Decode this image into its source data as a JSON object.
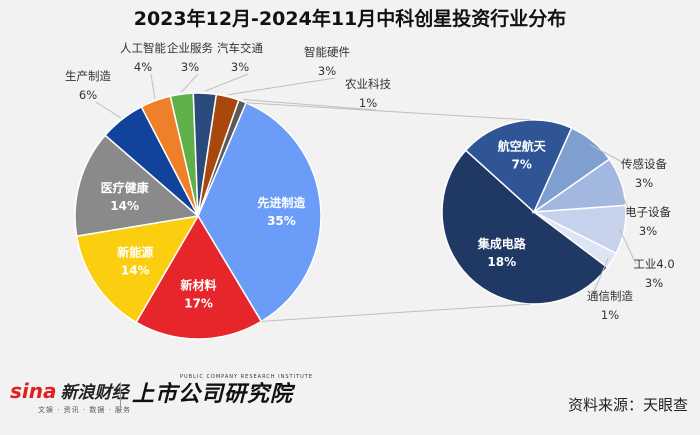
{
  "title": "2023年12月-2024年11月中科创星投资行业分布",
  "chart_data": [
    {
      "type": "pie",
      "slices": [
        {
          "label": "先进制造",
          "value": 35,
          "pct": "35%",
          "color": "#6b9df8"
        },
        {
          "label": "新材料",
          "value": 17,
          "pct": "17%",
          "color": "#e6262b"
        },
        {
          "label": "新能源",
          "value": 14,
          "pct": "14%",
          "color": "#fcce10"
        },
        {
          "label": "医疗健康",
          "value": 14,
          "pct": "14%",
          "color": "#8a8a8a"
        },
        {
          "label": "生产制造",
          "value": 6,
          "pct": "6%",
          "color": "#11429c"
        },
        {
          "label": "人工智能",
          "value": 4,
          "pct": "4%",
          "color": "#f07f2a"
        },
        {
          "label": "企业服务",
          "value": 3,
          "pct": "3%",
          "color": "#5fb048"
        },
        {
          "label": "汽车交通",
          "value": 3,
          "pct": "3%",
          "color": "#2b4a7c"
        },
        {
          "label": "智能硬件",
          "value": 3,
          "pct": "3%",
          "color": "#a8480e"
        },
        {
          "label": "农业科技",
          "value": 1,
          "pct": "1%",
          "color": "#5a5a5a"
        }
      ]
    },
    {
      "type": "pie",
      "slices": [
        {
          "label": "集成电路",
          "value": 18,
          "pct": "18%",
          "color": "#1f3864"
        },
        {
          "label": "航空航天",
          "value": 7,
          "pct": "7%",
          "color": "#2f5597"
        },
        {
          "label": "传感设备",
          "value": 3,
          "pct": "3%",
          "color": "#7f9fd1"
        },
        {
          "label": "电子设备",
          "value": 3,
          "pct": "3%",
          "color": "#a3b8e0"
        },
        {
          "label": "工业4.0",
          "value": 3,
          "pct": "3%",
          "color": "#c6d2ec"
        },
        {
          "label": "通信制造",
          "value": 1,
          "pct": "1%",
          "color": "#dde5f4"
        }
      ]
    }
  ],
  "footer": {
    "sina_logo": "sina",
    "sina_name": "新浪财经",
    "sina_sub": "文娱 · 资讯 · 数据 · 服务",
    "institute_name": "上市公司研究院",
    "institute_en": "PUBLIC COMPANY RESEARCH INSTITUTE",
    "source": "资料来源：天眼查"
  }
}
